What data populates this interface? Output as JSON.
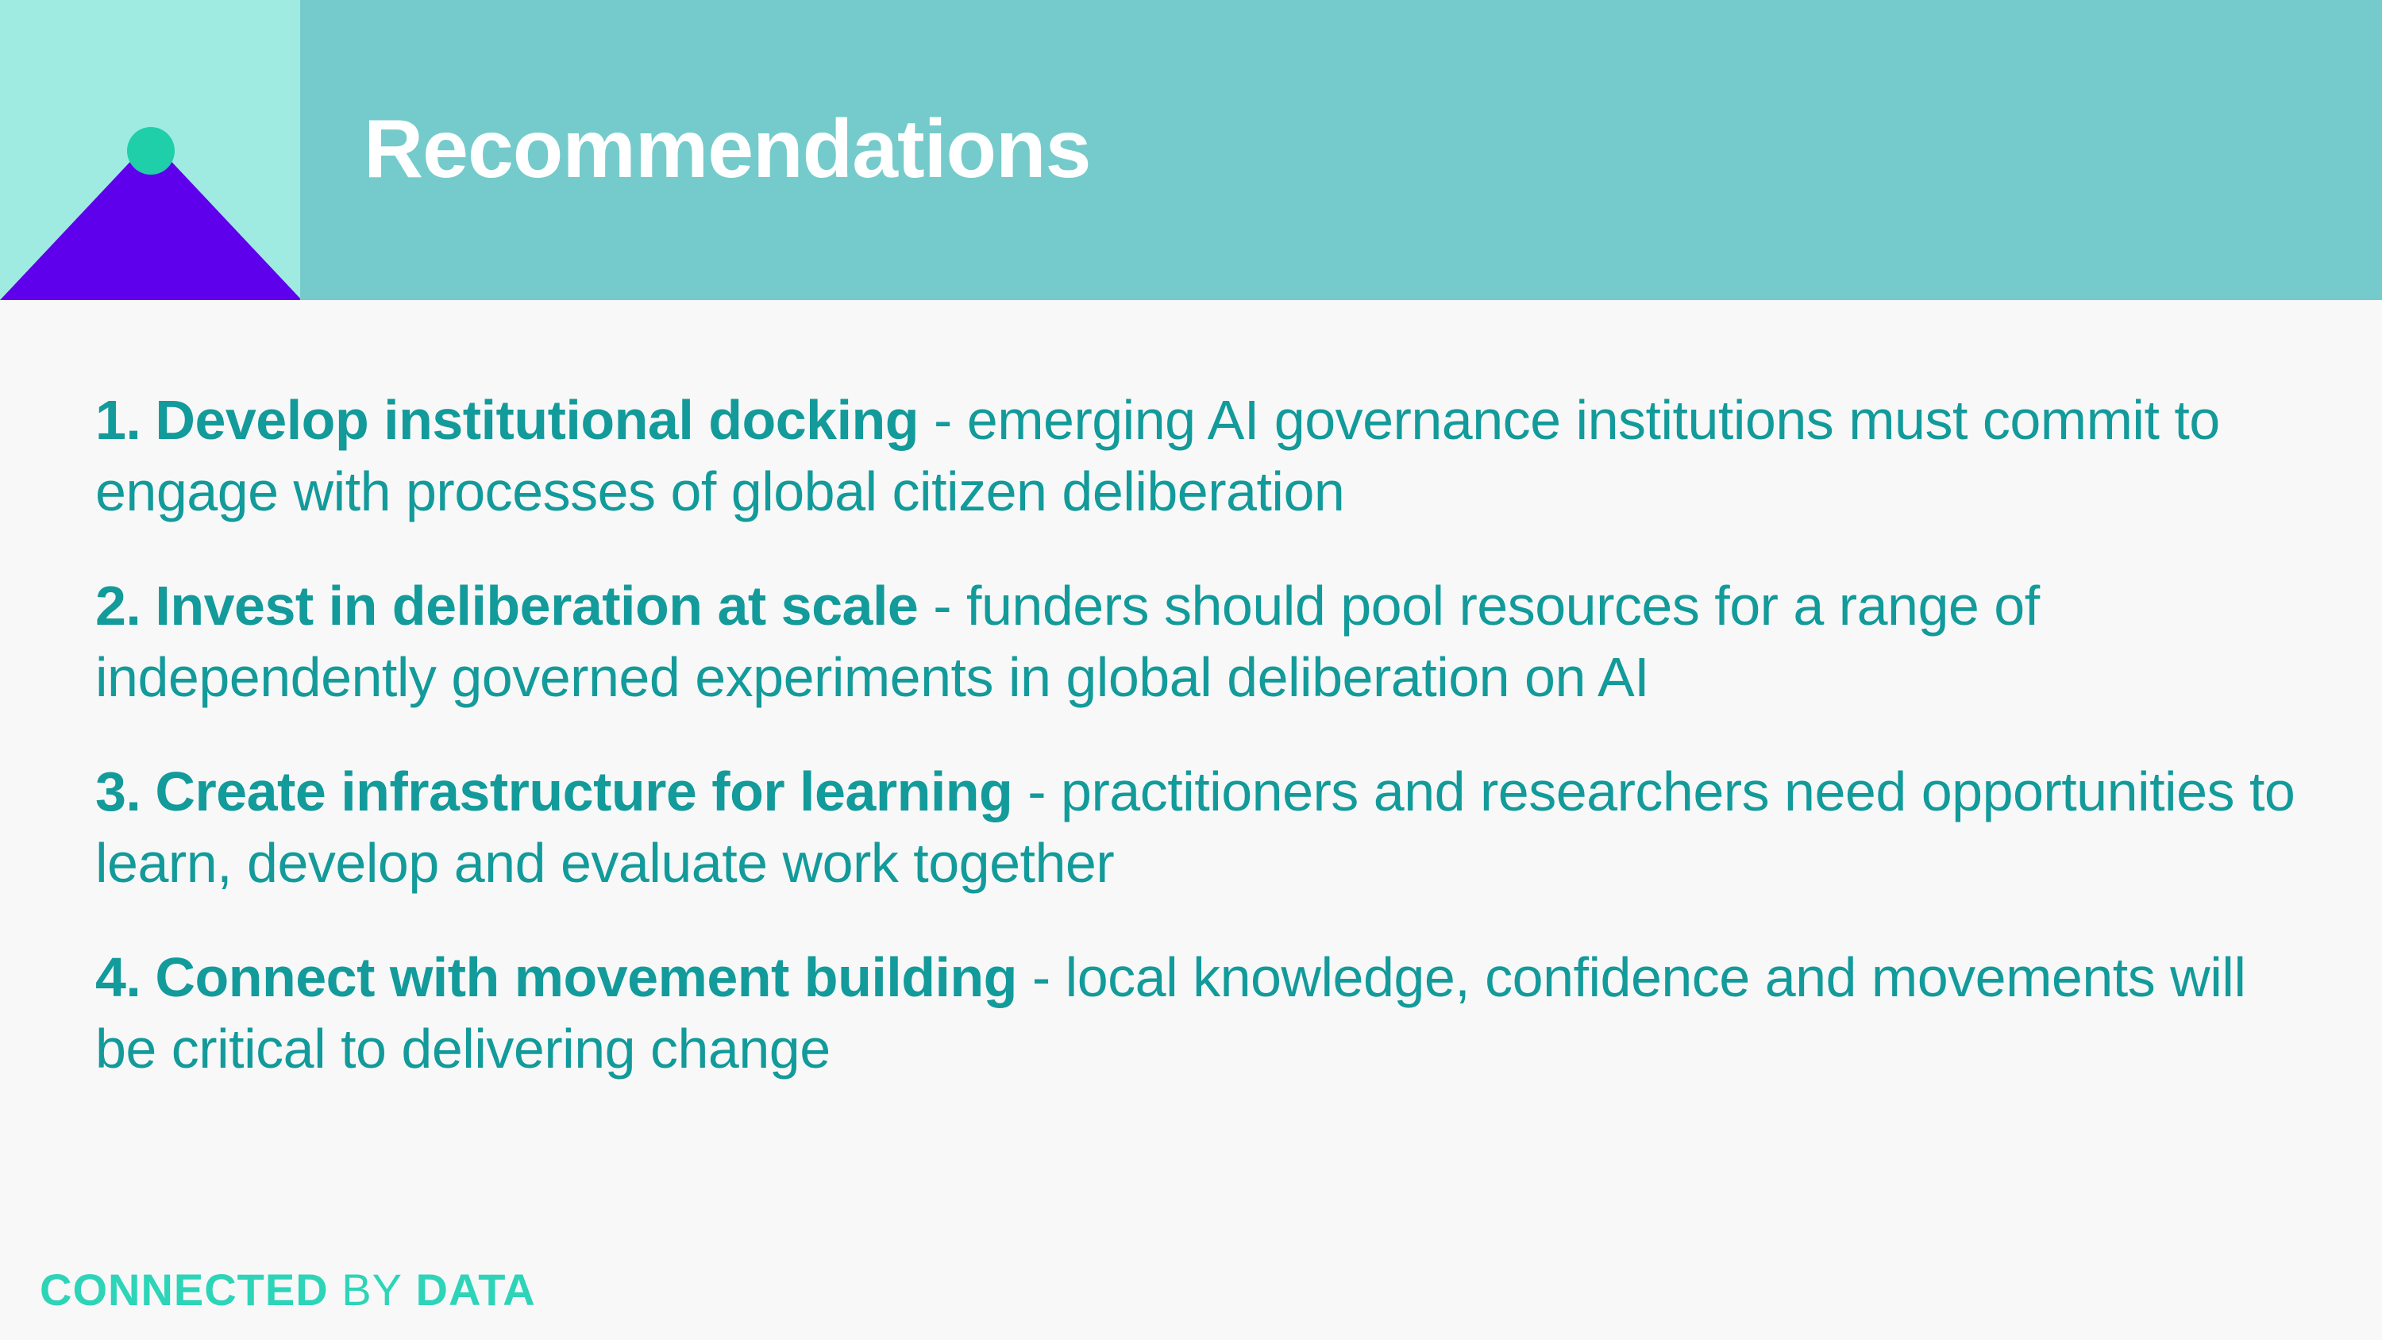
{
  "header": {
    "title": "Recommendations"
  },
  "logo": {
    "icon": "mountain-dot-icon",
    "triangle_color": "#5f00ec",
    "dot_color": "#1fcfa9",
    "tile_color": "#a0ebe1"
  },
  "recommendations": [
    {
      "number": "1.",
      "lead": "Develop institutional docking",
      "text": " - emerging AI governance institutions must commit to engage with processes of global citizen deliberation"
    },
    {
      "number": "2.",
      "lead": "Invest in deliberation at scale",
      "text": " - funders should pool resources for a range of independently governed experiments in global deliberation on AI"
    },
    {
      "number": "3.",
      "lead": "Create infrastructure for learning",
      "text": " - practitioners and researchers need opportunities to learn, develop and evaluate work together"
    },
    {
      "number": "4.",
      "lead": "Connect with movement building",
      "text": " - local knowledge, confidence and movements will be critical to delivering change"
    }
  ],
  "brand": {
    "part1": "CONNECTED",
    "part2": "BY",
    "part3": "DATA"
  },
  "colors": {
    "header_band": "#75cbcb",
    "text": "#139a9a",
    "brand": "#2dd4b8",
    "background": "#f8f8f8"
  }
}
